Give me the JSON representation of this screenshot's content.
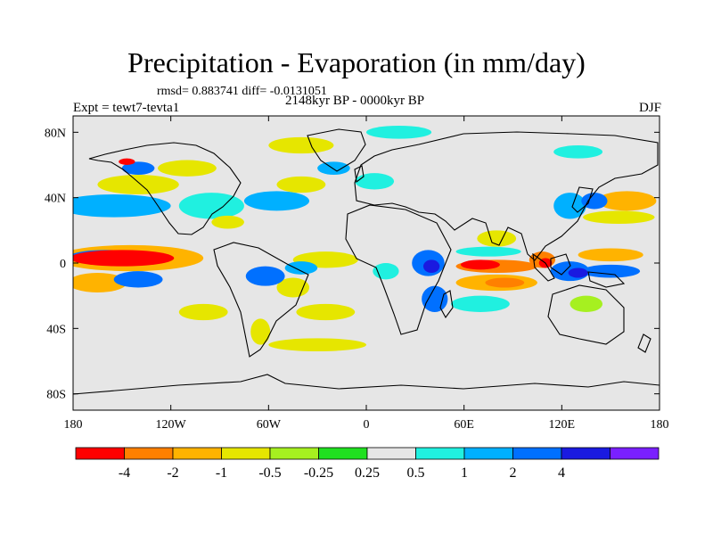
{
  "header": {
    "title": "Precipitation - Evaporation (in mm/day)",
    "stats": "rmsd= 0.883741 diff= -0.0131051",
    "period": "2148kyr BP - 0000kyr BP",
    "experiment": "Expt = tewt7-tevta1",
    "season": "DJF"
  },
  "chart_data": {
    "type": "heatmap",
    "title": "Precipitation - Evaporation (in mm/day)",
    "units": "mm/day",
    "xlim": [
      -180,
      180
    ],
    "ylim": [
      -90,
      90
    ],
    "x_ticks": [
      {
        "value": -180,
        "label": "180"
      },
      {
        "value": -120,
        "label": "120W"
      },
      {
        "value": -60,
        "label": "60W"
      },
      {
        "value": 0,
        "label": "0"
      },
      {
        "value": 60,
        "label": "60E"
      },
      {
        "value": 120,
        "label": "120E"
      },
      {
        "value": 180,
        "label": "180"
      }
    ],
    "y_ticks": [
      {
        "value": 80,
        "label": "80N"
      },
      {
        "value": 40,
        "label": "40N"
      },
      {
        "value": 0,
        "label": "0"
      },
      {
        "value": -40,
        "label": "40S"
      },
      {
        "value": -80,
        "label": "80S"
      }
    ],
    "colorbar": {
      "colors": [
        "#ff0000",
        "#ff8000",
        "#ffb300",
        "#e6e600",
        "#a6f020",
        "#20e020",
        "#e6e6e6",
        "#20f0e0",
        "#00b0ff",
        "#0070ff",
        "#1a1ae0",
        "#7a20ff"
      ],
      "tick_labels": [
        "-4",
        "-2",
        "-1",
        "-0.5",
        "-0.25",
        "0.25",
        "0.5",
        "1",
        "2",
        "4"
      ]
    },
    "features": [
      {
        "name": "pacific-eq-dry",
        "lon": -150,
        "lat": 3,
        "rx": 32,
        "ry": 5,
        "level": -4
      },
      {
        "name": "pacific-eq-dry-belt",
        "lon": -145,
        "lat": 3,
        "rx": 45,
        "ry": 8,
        "level": -1
      },
      {
        "name": "pacific-nh-wet",
        "lon": -160,
        "lat": 4,
        "rx": 22,
        "ry": 4,
        "level": 2
      },
      {
        "name": "spcz-dry",
        "lon": -165,
        "lat": -12,
        "rx": 18,
        "ry": 6,
        "level": -1
      },
      {
        "name": "spcz-wet",
        "lon": -140,
        "lat": -10,
        "rx": 15,
        "ry": 5,
        "level": 2
      },
      {
        "name": "north-pacific-wet",
        "lon": -155,
        "lat": 35,
        "rx": 35,
        "ry": 7,
        "level": 1
      },
      {
        "name": "north-pacific-dry",
        "lon": -140,
        "lat": 48,
        "rx": 25,
        "ry": 6,
        "level": -0.5
      },
      {
        "name": "alaska-wet",
        "lon": -140,
        "lat": 58,
        "rx": 10,
        "ry": 4,
        "level": 2
      },
      {
        "name": "alaska-dry",
        "lon": -147,
        "lat": 62,
        "rx": 5,
        "ry": 2,
        "level": -4
      },
      {
        "name": "canada-dry",
        "lon": -110,
        "lat": 58,
        "rx": 18,
        "ry": 5,
        "level": -0.5
      },
      {
        "name": "usa-wet",
        "lon": -95,
        "lat": 35,
        "rx": 20,
        "ry": 8,
        "level": 0.5
      },
      {
        "name": "gulf-dry",
        "lon": -85,
        "lat": 25,
        "rx": 10,
        "ry": 4,
        "level": -0.5
      },
      {
        "name": "atlantic-nh-wet",
        "lon": -55,
        "lat": 38,
        "rx": 20,
        "ry": 6,
        "level": 1
      },
      {
        "name": "atlantic-nh-dry",
        "lon": -40,
        "lat": 48,
        "rx": 15,
        "ry": 5,
        "level": -0.5
      },
      {
        "name": "north-atlantic-wet",
        "lon": -20,
        "lat": 58,
        "rx": 10,
        "ry": 4,
        "level": 1
      },
      {
        "name": "greenland-dry",
        "lon": -40,
        "lat": 72,
        "rx": 20,
        "ry": 5,
        "level": -0.5
      },
      {
        "name": "europe-wet",
        "lon": 5,
        "lat": 50,
        "rx": 12,
        "ry": 5,
        "level": 0.5
      },
      {
        "name": "atlantic-eq-dry",
        "lon": -25,
        "lat": 2,
        "rx": 20,
        "ry": 5,
        "level": -0.5
      },
      {
        "name": "atlantic-eq-wet",
        "lon": -40,
        "lat": -3,
        "rx": 10,
        "ry": 4,
        "level": 1
      },
      {
        "name": "amazon-wet",
        "lon": -62,
        "lat": -8,
        "rx": 12,
        "ry": 6,
        "level": 2
      },
      {
        "name": "brazil-dry",
        "lon": -45,
        "lat": -15,
        "rx": 10,
        "ry": 6,
        "level": -0.5
      },
      {
        "name": "south-atlantic-dry",
        "lon": -25,
        "lat": -30,
        "rx": 18,
        "ry": 5,
        "level": -0.5
      },
      {
        "name": "south-pacific-dry",
        "lon": -100,
        "lat": -30,
        "rx": 15,
        "ry": 5,
        "level": -0.5
      },
      {
        "name": "andes-dry",
        "lon": -65,
        "lat": -42,
        "rx": 6,
        "ry": 8,
        "level": -0.5
      },
      {
        "name": "southern-ocean-dry",
        "lon": -30,
        "lat": -50,
        "rx": 30,
        "ry": 4,
        "level": -0.5
      },
      {
        "name": "africa-west-wet",
        "lon": 12,
        "lat": -5,
        "rx": 8,
        "ry": 5,
        "level": 0.5
      },
      {
        "name": "east-africa-wet",
        "lon": 38,
        "lat": 0,
        "rx": 10,
        "ry": 8,
        "level": 2
      },
      {
        "name": "east-africa-core",
        "lon": 40,
        "lat": -2,
        "rx": 5,
        "ry": 4,
        "level": 4
      },
      {
        "name": "madagascar-wet",
        "lon": 42,
        "lat": -22,
        "rx": 8,
        "ry": 8,
        "level": 2
      },
      {
        "name": "india-dry",
        "lon": 80,
        "lat": 15,
        "rx": 12,
        "ry": 5,
        "level": -0.5
      },
      {
        "name": "indian-ocean-dry",
        "lon": 80,
        "lat": -2,
        "rx": 25,
        "ry": 4,
        "level": -2
      },
      {
        "name": "indian-ocean-core",
        "lon": 70,
        "lat": -1,
        "rx": 12,
        "ry": 3,
        "level": -4
      },
      {
        "name": "indian-ocean-wet",
        "lon": 75,
        "lat": 7,
        "rx": 20,
        "ry": 3,
        "level": 0.5
      },
      {
        "name": "south-indian-dry",
        "lon": 80,
        "lat": -12,
        "rx": 25,
        "ry": 5,
        "level": -1
      },
      {
        "name": "south-indian-core",
        "lon": 85,
        "lat": -12,
        "rx": 12,
        "ry": 3,
        "level": -2
      },
      {
        "name": "south-indian-wet",
        "lon": 70,
        "lat": -25,
        "rx": 18,
        "ry": 5,
        "level": 0.5
      },
      {
        "name": "maritime-wet",
        "lon": 125,
        "lat": -5,
        "rx": 12,
        "ry": 6,
        "level": 2
      },
      {
        "name": "maritime-core",
        "lon": 130,
        "lat": -6,
        "rx": 6,
        "ry": 3,
        "level": 4
      },
      {
        "name": "borneo-dry",
        "lon": 108,
        "lat": 2,
        "rx": 8,
        "ry": 5,
        "level": -2
      },
      {
        "name": "borneo-core",
        "lon": 110,
        "lat": 0,
        "rx": 4,
        "ry": 3,
        "level": -4
      },
      {
        "name": "west-pacific-dry",
        "lon": 150,
        "lat": 5,
        "rx": 20,
        "ry": 4,
        "level": -1
      },
      {
        "name": "west-pacific-wet",
        "lon": 150,
        "lat": -5,
        "rx": 18,
        "ry": 4,
        "level": 2
      },
      {
        "name": "east-asia-wet",
        "lon": 125,
        "lat": 35,
        "rx": 10,
        "ry": 8,
        "level": 1
      },
      {
        "name": "japan-wet",
        "lon": 140,
        "lat": 38,
        "rx": 8,
        "ry": 5,
        "level": 2
      },
      {
        "name": "nw-pacific-dry",
        "lon": 160,
        "lat": 38,
        "rx": 18,
        "ry": 6,
        "level": -1
      },
      {
        "name": "nw-pacific-belt",
        "lon": 155,
        "lat": 28,
        "rx": 22,
        "ry": 4,
        "level": -0.5
      },
      {
        "name": "australia-dry",
        "lon": 135,
        "lat": -25,
        "rx": 10,
        "ry": 5,
        "level": -0.25
      },
      {
        "name": "siberia-wet",
        "lon": 130,
        "lat": 68,
        "rx": 15,
        "ry": 4,
        "level": 0.5
      },
      {
        "name": "arctic-wet",
        "lon": 20,
        "lat": 80,
        "rx": 20,
        "ry": 4,
        "level": 0.5
      }
    ]
  }
}
